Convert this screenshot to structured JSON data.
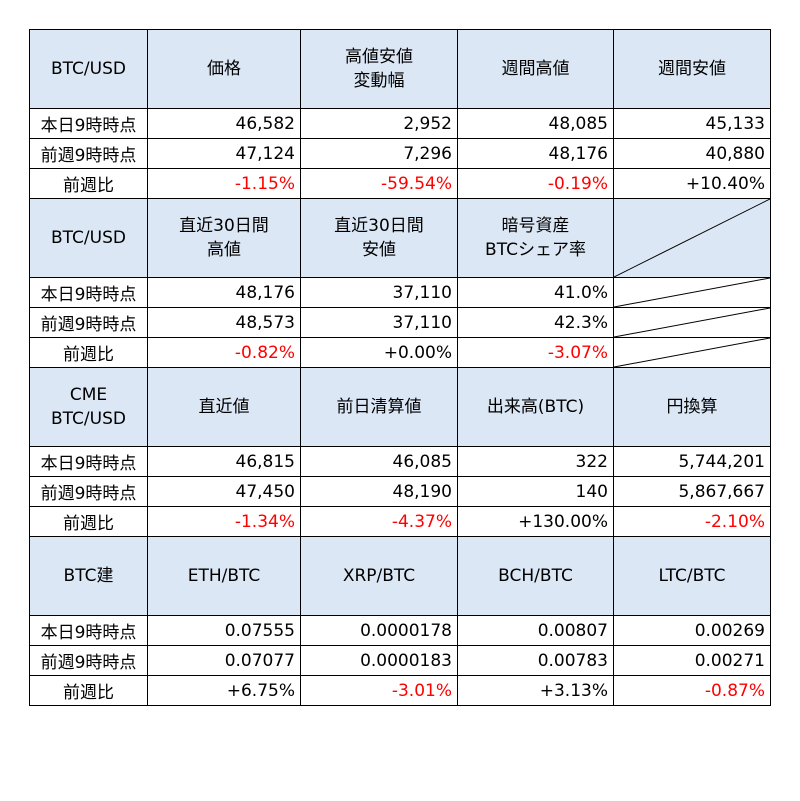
{
  "sections": [
    {
      "headers": [
        "BTC/USD",
        "価格",
        "高値安値\n変動幅",
        "週間高値",
        "週間安値"
      ],
      "rows": [
        {
          "label": "本日9時時点",
          "values": [
            {
              "v": "46,582"
            },
            {
              "v": "2,952"
            },
            {
              "v": "48,085"
            },
            {
              "v": "45,133"
            }
          ]
        },
        {
          "label": "前週9時時点",
          "values": [
            {
              "v": "47,124"
            },
            {
              "v": "7,296"
            },
            {
              "v": "48,176"
            },
            {
              "v": "40,880"
            }
          ]
        },
        {
          "label": "前週比",
          "values": [
            {
              "v": "-1.15%",
              "neg": true
            },
            {
              "v": "-59.54%",
              "neg": true
            },
            {
              "v": "-0.19%",
              "neg": true
            },
            {
              "v": "+10.40%"
            }
          ]
        }
      ]
    },
    {
      "headers": [
        "BTC/USD",
        "直近30日間\n高値",
        "直近30日間\n安値",
        "暗号資産\nBTCシェア率",
        ""
      ],
      "diag_last": true,
      "rows": [
        {
          "label": "本日9時時点",
          "values": [
            {
              "v": "48,176"
            },
            {
              "v": "37,110"
            },
            {
              "v": "41.0%"
            },
            {
              "v": ""
            }
          ]
        },
        {
          "label": "前週9時時点",
          "values": [
            {
              "v": "48,573"
            },
            {
              "v": "37,110"
            },
            {
              "v": "42.3%"
            },
            {
              "v": ""
            }
          ]
        },
        {
          "label": "前週比",
          "values": [
            {
              "v": "-0.82%",
              "neg": true
            },
            {
              "v": "+0.00%"
            },
            {
              "v": "-3.07%",
              "neg": true
            },
            {
              "v": ""
            }
          ]
        }
      ]
    },
    {
      "headers": [
        "CME\nBTC/USD",
        "直近値",
        "前日清算値",
        "出来高(BTC)",
        "円換算"
      ],
      "rows": [
        {
          "label": "本日9時時点",
          "values": [
            {
              "v": "46,815"
            },
            {
              "v": "46,085"
            },
            {
              "v": "322"
            },
            {
              "v": "5,744,201"
            }
          ]
        },
        {
          "label": "前週9時時点",
          "values": [
            {
              "v": "47,450"
            },
            {
              "v": "48,190"
            },
            {
              "v": "140"
            },
            {
              "v": "5,867,667"
            }
          ]
        },
        {
          "label": "前週比",
          "values": [
            {
              "v": "-1.34%",
              "neg": true
            },
            {
              "v": "-4.37%",
              "neg": true
            },
            {
              "v": "+130.00%"
            },
            {
              "v": "-2.10%",
              "neg": true
            }
          ]
        }
      ]
    },
    {
      "headers": [
        "BTC建",
        "ETH/BTC",
        "XRP/BTC",
        "BCH/BTC",
        "LTC/BTC"
      ],
      "rows": [
        {
          "label": "本日9時時点",
          "values": [
            {
              "v": "0.07555"
            },
            {
              "v": "0.0000178"
            },
            {
              "v": "0.00807"
            },
            {
              "v": "0.00269"
            }
          ]
        },
        {
          "label": "前週9時時点",
          "values": [
            {
              "v": "0.07077"
            },
            {
              "v": "0.0000183"
            },
            {
              "v": "0.00783"
            },
            {
              "v": "0.00271"
            }
          ]
        },
        {
          "label": "前週比",
          "values": [
            {
              "v": "+6.75%"
            },
            {
              "v": "-3.01%",
              "neg": true
            },
            {
              "v": "+3.13%"
            },
            {
              "v": "-0.87%",
              "neg": true
            }
          ]
        }
      ]
    }
  ]
}
